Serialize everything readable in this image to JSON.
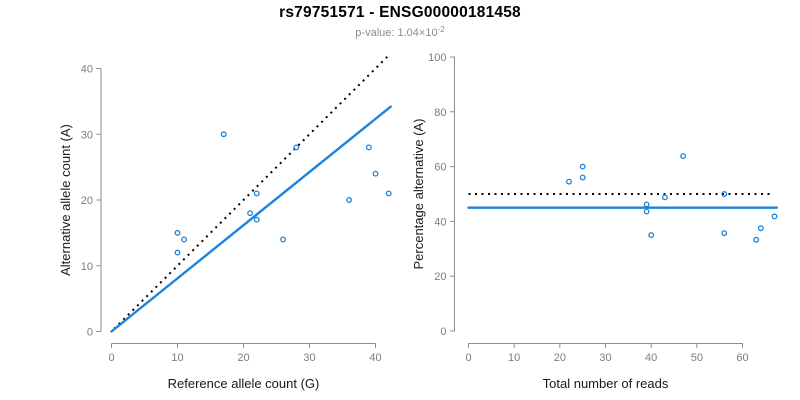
{
  "title": "rs79751571 - ENSG00000181458",
  "subtitle": {
    "base": "p-value: 1.04×10",
    "exponent": "-2"
  },
  "colors": {
    "accent_blue": "#1e82dc",
    "identity_black": "#000000",
    "axis_line": "#8c8c8c",
    "tick_label": "#7d7d7d",
    "axis_title": "#1a1a1a"
  },
  "chart_data": [
    {
      "id": "allele-counts",
      "type": "scatter",
      "xlabel": "Reference allele count (G)",
      "ylabel": "Alternative allele count (A)",
      "xticks": [
        0,
        10,
        20,
        30,
        40
      ],
      "yticks": [
        0,
        10,
        20,
        30,
        40
      ],
      "xlim": [
        0,
        42.3
      ],
      "ylim": [
        0,
        42.3
      ],
      "grid": false,
      "points": [
        {
          "x": 10,
          "y": 12
        },
        {
          "x": 10,
          "y": 15
        },
        {
          "x": 11,
          "y": 14
        },
        {
          "x": 17,
          "y": 30
        },
        {
          "x": 21,
          "y": 18
        },
        {
          "x": 22,
          "y": 17
        },
        {
          "x": 22,
          "y": 21
        },
        {
          "x": 26,
          "y": 14
        },
        {
          "x": 28,
          "y": 28
        },
        {
          "x": 36,
          "y": 20
        },
        {
          "x": 39,
          "y": 28
        },
        {
          "x": 40,
          "y": 24
        },
        {
          "x": 42,
          "y": 21
        }
      ],
      "lines": [
        {
          "name": "identity-line",
          "style": "dotted",
          "color": "#000000",
          "from": [
            0.4,
            0.4
          ],
          "to": [
            42.0,
            42.0
          ]
        },
        {
          "name": "fit-line",
          "style": "solid",
          "color": "#1e82dc",
          "from": [
            0,
            0
          ],
          "to": [
            42.3,
            34.2
          ]
        }
      ]
    },
    {
      "id": "percentage-alternative",
      "type": "scatter",
      "xlabel": "Total number of reads",
      "ylabel": "Percentage alternative (A)",
      "xticks": [
        0,
        10,
        20,
        30,
        40,
        50,
        60
      ],
      "yticks": [
        0,
        20,
        40,
        60,
        80,
        100
      ],
      "xlim": [
        0,
        67.5
      ],
      "ylim": [
        0,
        100
      ],
      "grid": false,
      "points": [
        {
          "x": 22,
          "y": 54.5
        },
        {
          "x": 25,
          "y": 60.0
        },
        {
          "x": 25,
          "y": 56.0
        },
        {
          "x": 39,
          "y": 46.2
        },
        {
          "x": 39,
          "y": 43.6
        },
        {
          "x": 40,
          "y": 35.0
        },
        {
          "x": 43,
          "y": 48.8
        },
        {
          "x": 47,
          "y": 63.8
        },
        {
          "x": 56,
          "y": 50.0
        },
        {
          "x": 56,
          "y": 35.7
        },
        {
          "x": 63,
          "y": 33.3
        },
        {
          "x": 64,
          "y": 37.5
        },
        {
          "x": 67,
          "y": 41.8
        }
      ],
      "lines": [
        {
          "name": "null-line",
          "style": "dotted",
          "color": "#000000",
          "from": [
            0,
            50
          ],
          "to": [
            66.5,
            50
          ]
        },
        {
          "name": "mean-line",
          "style": "solid",
          "color": "#1e82dc",
          "from": [
            0,
            45
          ],
          "to": [
            67.5,
            45
          ]
        }
      ]
    }
  ]
}
